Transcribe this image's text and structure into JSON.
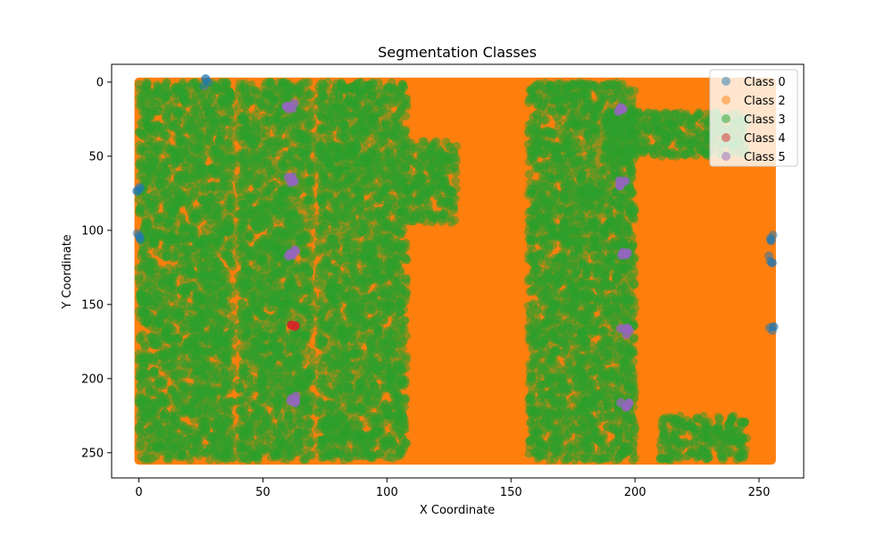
{
  "chart_data": {
    "type": "scatter",
    "title": "Segmentation Classes",
    "xlabel": "X Coordinate",
    "ylabel": "Y Coordinate",
    "xlim": [
      -11,
      268
    ],
    "ylim": [
      267,
      -12
    ],
    "y_inverted": true,
    "xticks": [
      0,
      50,
      100,
      150,
      200,
      250
    ],
    "yticks": [
      0,
      50,
      100,
      150,
      200,
      250
    ],
    "grid": false,
    "legend_position": "top-right",
    "point_alpha": 0.5,
    "series": [
      {
        "name": "Class 0",
        "color": "#1f77b4"
      },
      {
        "name": "Class 2",
        "color": "#ff7f0e"
      },
      {
        "name": "Class 3",
        "color": "#2ca02c"
      },
      {
        "name": "Class 4",
        "color": "#d62728"
      },
      {
        "name": "Class 5",
        "color": "#9467bd"
      }
    ],
    "regions": {
      "background_class": "Class 2",
      "extent": {
        "x": [
          0,
          255
        ],
        "y": [
          0,
          255
        ]
      },
      "class3_bands": [
        {
          "x": [
            0,
            38
          ],
          "y": [
            0,
            255
          ]
        },
        {
          "x": [
            40,
            70
          ],
          "y": [
            0,
            255
          ]
        },
        {
          "x": [
            72,
            108
          ],
          "y": [
            0,
            255
          ]
        },
        {
          "x": [
            108,
            128
          ],
          "y": [
            40,
            95
          ]
        },
        {
          "x": [
            157,
            200
          ],
          "y": [
            0,
            255
          ]
        },
        {
          "x": [
            188,
            245
          ],
          "y": [
            20,
            50
          ]
        },
        {
          "x": [
            210,
            245
          ],
          "y": [
            225,
            255
          ]
        }
      ],
      "class5_points": [
        {
          "x": 61,
          "y": 16
        },
        {
          "x": 61,
          "y": 66
        },
        {
          "x": 62,
          "y": 115
        },
        {
          "x": 62,
          "y": 214
        },
        {
          "x": 195,
          "y": 18
        },
        {
          "x": 195,
          "y": 68
        },
        {
          "x": 196,
          "y": 116
        },
        {
          "x": 196,
          "y": 168
        },
        {
          "x": 196,
          "y": 218
        }
      ],
      "class4_points": [
        {
          "x": 62,
          "y": 165
        }
      ],
      "class0_points": [
        {
          "x": 0,
          "y": 73
        },
        {
          "x": 0,
          "y": 104
        },
        {
          "x": 27,
          "y": 0
        },
        {
          "x": 255,
          "y": 120
        },
        {
          "x": 255,
          "y": 104
        },
        {
          "x": 255,
          "y": 166
        }
      ]
    }
  }
}
